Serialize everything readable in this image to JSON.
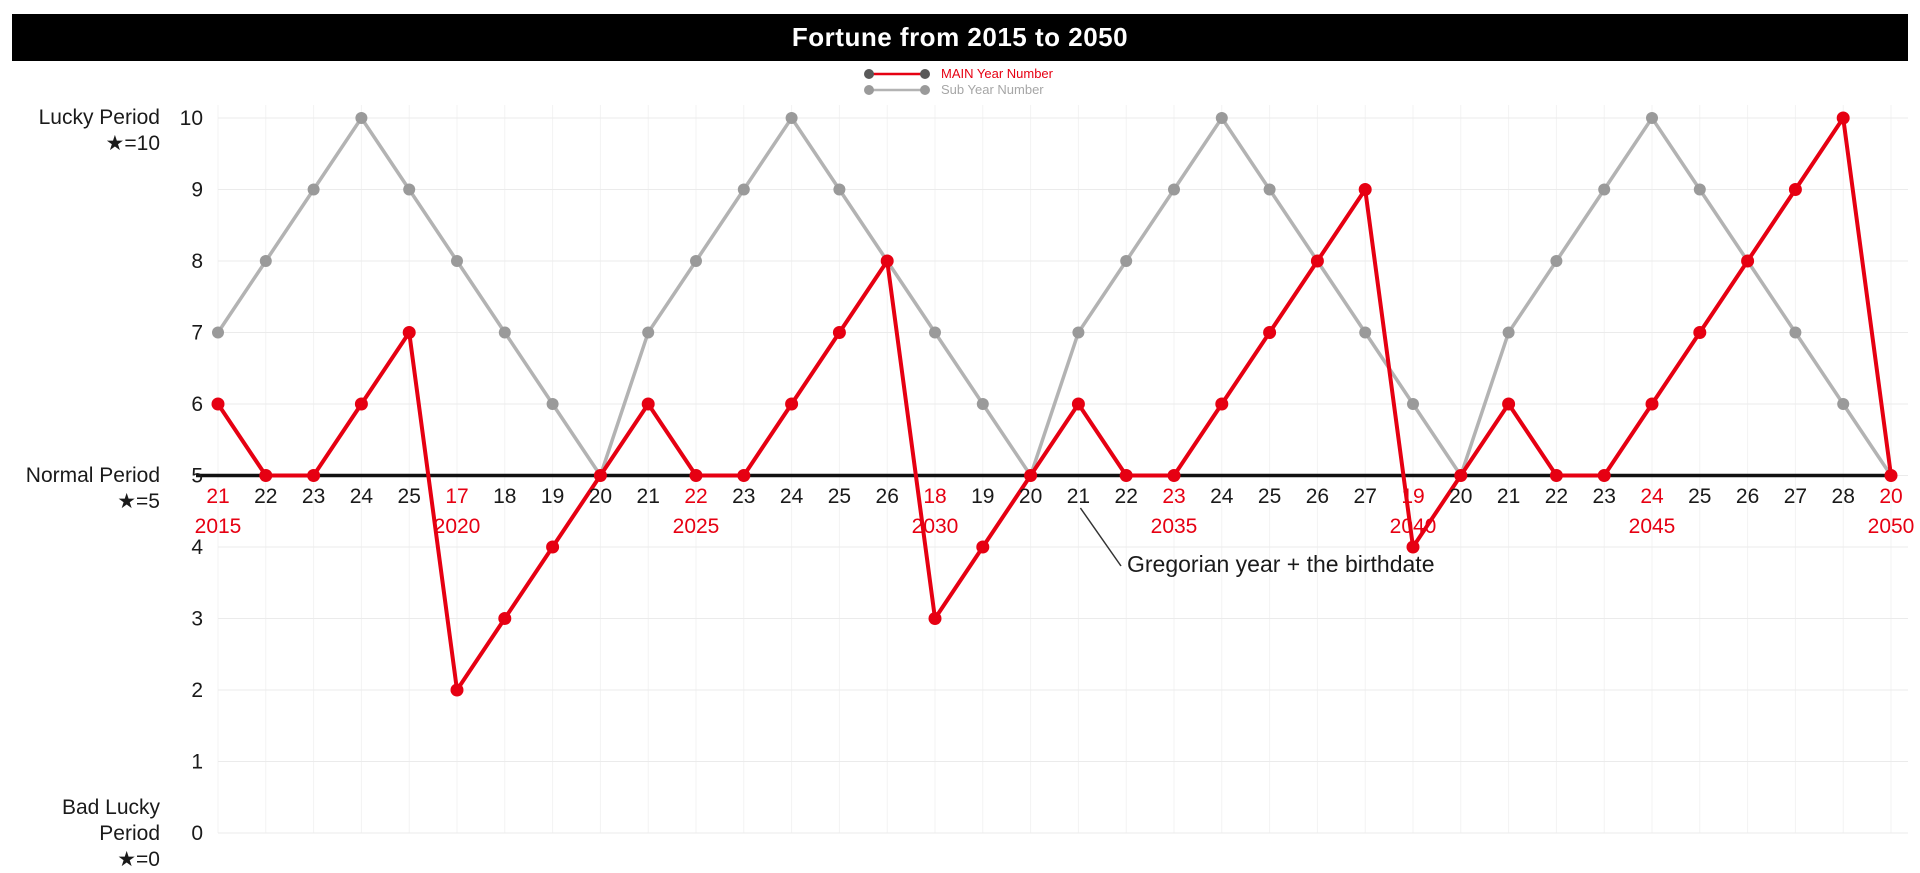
{
  "title": "Fortune from 2015 to 2050",
  "legend": {
    "main": {
      "label": "MAIN Year Number",
      "line_color": "#e60012",
      "marker_color": "#595959",
      "label_color": "#e60012"
    },
    "sub": {
      "label": "Sub Year Number",
      "line_color": "#b3b3b3",
      "marker_color": "#9a9a9a",
      "label_color": "#a6a6a6"
    }
  },
  "y_axis_sections": {
    "lucky": {
      "line1": "Lucky Period",
      "line2": "★=10"
    },
    "normal": {
      "line1": "Normal Period",
      "line2": "★=5"
    },
    "bad": {
      "line1": "Bad Lucky Period",
      "line2": "★=0"
    }
  },
  "annotation": {
    "text": "Gregorian year + the birthdate",
    "target_label_index": 18
  },
  "chart_data": {
    "type": "line",
    "title": "Fortune from 2015 to 2050",
    "xlabel": "",
    "ylabel": "",
    "ylim": [
      0,
      10
    ],
    "grid": true,
    "legend_position": "top-center",
    "y_ticks": [
      0,
      1,
      2,
      3,
      4,
      5,
      6,
      7,
      8,
      9,
      10
    ],
    "x_tick_labels": [
      "21",
      "22",
      "23",
      "24",
      "25",
      "17",
      "18",
      "19",
      "20",
      "21",
      "22",
      "23",
      "24",
      "25",
      "26",
      "18",
      "19",
      "20",
      "21",
      "22",
      "23",
      "24",
      "25",
      "26",
      "27",
      "19",
      "20",
      "21",
      "22",
      "23",
      "24",
      "25",
      "26",
      "27",
      "28",
      "20"
    ],
    "x_tick_red_indices": [
      0,
      5,
      10,
      15,
      20,
      25,
      30,
      35
    ],
    "year_labels": {
      "0": "2015",
      "5": "2020",
      "10": "2025",
      "15": "2030",
      "20": "2035",
      "25": "2040",
      "30": "2045",
      "35": "2050"
    },
    "reference_line": {
      "value": 5,
      "color": "#111111",
      "meaning": "Normal Period"
    },
    "series": [
      {
        "name": "MAIN Year Number",
        "color": "#e60012",
        "marker_color": "#e60012",
        "values": [
          6,
          5,
          5,
          6,
          7,
          2,
          3,
          4,
          5,
          6,
          5,
          5,
          6,
          7,
          8,
          3,
          4,
          5,
          6,
          5,
          5,
          6,
          7,
          8,
          9,
          4,
          5,
          6,
          5,
          5,
          6,
          7,
          8,
          9,
          10,
          5
        ]
      },
      {
        "name": "Sub Year Number",
        "color": "#b3b3b3",
        "marker_color": "#9a9a9a",
        "values": [
          7,
          8,
          9,
          10,
          9,
          8,
          7,
          6,
          5,
          7,
          8,
          9,
          10,
          9,
          8,
          7,
          6,
          5,
          7,
          8,
          9,
          10,
          9,
          8,
          7,
          6,
          5,
          7,
          8,
          9,
          10,
          9,
          8,
          7,
          6,
          5
        ]
      }
    ],
    "tick_color_red": "#e60012",
    "tick_color_black": "#1a1a1a"
  }
}
